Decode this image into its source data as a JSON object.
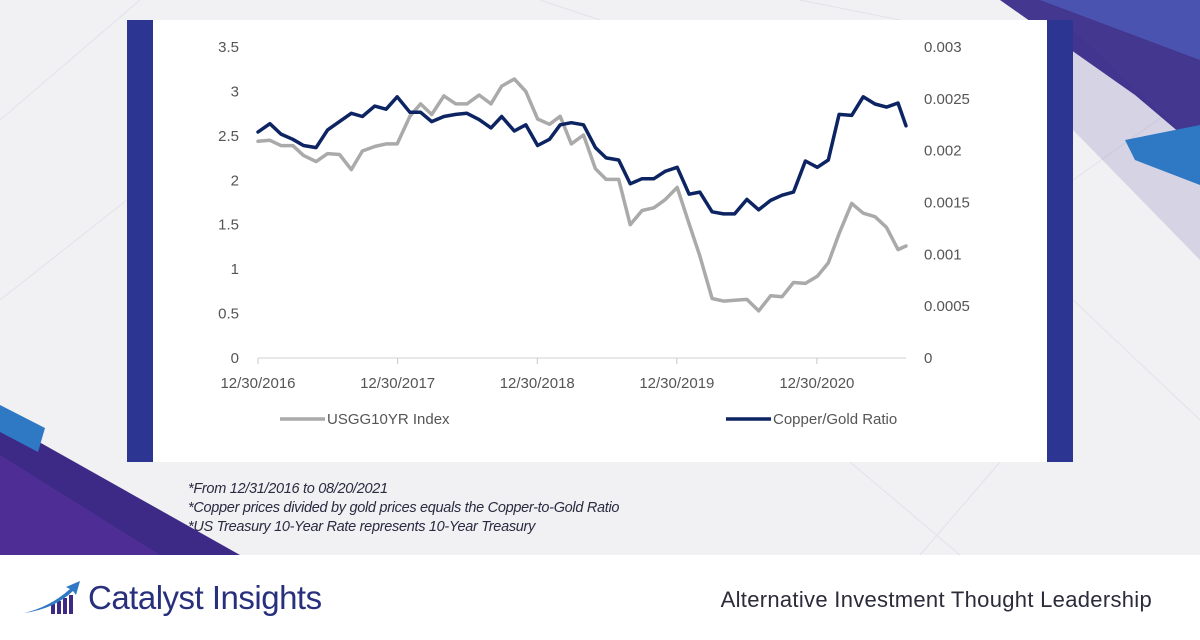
{
  "chart_data": {
    "type": "line",
    "x_tick_labels": [
      "12/30/2016",
      "12/30/2017",
      "12/30/2018",
      "12/30/2019",
      "12/30/2020"
    ],
    "y_left_ticks": [
      "3.5",
      "3",
      "2.5",
      "2",
      "1.5",
      "1",
      "0.5",
      "0"
    ],
    "y_right_ticks": [
      "0.003",
      "0.0025",
      "0.002",
      "0.0015",
      "0.001",
      "0.0005",
      "0"
    ],
    "y_left_range": [
      0,
      3.5
    ],
    "y_right_range": [
      0,
      0.003
    ],
    "x_range": [
      "2016-12-30",
      "2021-08-20"
    ],
    "legend_position": "bottom",
    "series": [
      {
        "name": "USGG10YR Index",
        "axis": "left",
        "color": "#aaaaaa",
        "points": [
          [
            "2016-12-30",
            2.44
          ],
          [
            "2017-01-30",
            2.45
          ],
          [
            "2017-02-28",
            2.39
          ],
          [
            "2017-03-31",
            2.39
          ],
          [
            "2017-04-28",
            2.28
          ],
          [
            "2017-05-31",
            2.21
          ],
          [
            "2017-06-30",
            2.3
          ],
          [
            "2017-07-31",
            2.29
          ],
          [
            "2017-08-31",
            2.12
          ],
          [
            "2017-09-29",
            2.33
          ],
          [
            "2017-10-31",
            2.38
          ],
          [
            "2017-11-30",
            2.41
          ],
          [
            "2017-12-29",
            2.41
          ],
          [
            "2018-01-31",
            2.72
          ],
          [
            "2018-02-28",
            2.86
          ],
          [
            "2018-03-29",
            2.74
          ],
          [
            "2018-04-30",
            2.95
          ],
          [
            "2018-05-31",
            2.86
          ],
          [
            "2018-06-29",
            2.86
          ],
          [
            "2018-07-31",
            2.96
          ],
          [
            "2018-08-31",
            2.86
          ],
          [
            "2018-09-28",
            3.06
          ],
          [
            "2018-10-31",
            3.14
          ],
          [
            "2018-11-30",
            3.0
          ],
          [
            "2018-12-31",
            2.69
          ],
          [
            "2019-01-31",
            2.63
          ],
          [
            "2019-02-28",
            2.72
          ],
          [
            "2019-03-29",
            2.41
          ],
          [
            "2019-04-30",
            2.51
          ],
          [
            "2019-05-31",
            2.13
          ],
          [
            "2019-06-28",
            2.01
          ],
          [
            "2019-07-31",
            2.01
          ],
          [
            "2019-08-30",
            1.5
          ],
          [
            "2019-09-30",
            1.66
          ],
          [
            "2019-10-31",
            1.69
          ],
          [
            "2019-11-29",
            1.78
          ],
          [
            "2019-12-31",
            1.92
          ],
          [
            "2020-01-31",
            1.51
          ],
          [
            "2020-02-28",
            1.15
          ],
          [
            "2020-03-31",
            0.67
          ],
          [
            "2020-04-30",
            0.64
          ],
          [
            "2020-05-29",
            0.65
          ],
          [
            "2020-06-30",
            0.66
          ],
          [
            "2020-07-31",
            0.53
          ],
          [
            "2020-08-31",
            0.7
          ],
          [
            "2020-09-30",
            0.69
          ],
          [
            "2020-10-30",
            0.85
          ],
          [
            "2020-11-30",
            0.84
          ],
          [
            "2020-12-31",
            0.92
          ],
          [
            "2021-01-29",
            1.07
          ],
          [
            "2021-02-26",
            1.4
          ],
          [
            "2021-03-31",
            1.74
          ],
          [
            "2021-04-30",
            1.63
          ],
          [
            "2021-05-31",
            1.59
          ],
          [
            "2021-06-30",
            1.47
          ],
          [
            "2021-07-30",
            1.22
          ],
          [
            "2021-08-20",
            1.26
          ]
        ]
      },
      {
        "name": "Copper/Gold Ratio",
        "axis": "right",
        "color": "#0d2463",
        "points": [
          [
            "2016-12-30",
            0.00218
          ],
          [
            "2017-01-30",
            0.00226
          ],
          [
            "2017-02-28",
            0.00216
          ],
          [
            "2017-03-31",
            0.00211
          ],
          [
            "2017-04-28",
            0.00205
          ],
          [
            "2017-05-31",
            0.00203
          ],
          [
            "2017-06-30",
            0.0022
          ],
          [
            "2017-07-31",
            0.00228
          ],
          [
            "2017-08-31",
            0.00236
          ],
          [
            "2017-09-29",
            0.00233
          ],
          [
            "2017-10-31",
            0.00243
          ],
          [
            "2017-11-30",
            0.0024
          ],
          [
            "2017-12-29",
            0.00252
          ],
          [
            "2018-01-31",
            0.00237
          ],
          [
            "2018-02-28",
            0.00237
          ],
          [
            "2018-03-29",
            0.00228
          ],
          [
            "2018-04-30",
            0.00233
          ],
          [
            "2018-05-31",
            0.00235
          ],
          [
            "2018-06-29",
            0.00236
          ],
          [
            "2018-07-31",
            0.0023
          ],
          [
            "2018-08-31",
            0.00222
          ],
          [
            "2018-09-28",
            0.00233
          ],
          [
            "2018-10-31",
            0.00219
          ],
          [
            "2018-11-30",
            0.00225
          ],
          [
            "2018-12-31",
            0.00205
          ],
          [
            "2019-01-31",
            0.00211
          ],
          [
            "2019-02-28",
            0.00225
          ],
          [
            "2019-03-29",
            0.00227
          ],
          [
            "2019-04-30",
            0.00225
          ],
          [
            "2019-05-31",
            0.00203
          ],
          [
            "2019-06-28",
            0.00193
          ],
          [
            "2019-07-31",
            0.00191
          ],
          [
            "2019-08-30",
            0.00168
          ],
          [
            "2019-09-30",
            0.00173
          ],
          [
            "2019-10-31",
            0.00173
          ],
          [
            "2019-11-29",
            0.0018
          ],
          [
            "2019-12-31",
            0.00184
          ],
          [
            "2020-01-31",
            0.00158
          ],
          [
            "2020-02-28",
            0.0016
          ],
          [
            "2020-03-31",
            0.00141
          ],
          [
            "2020-04-30",
            0.00139
          ],
          [
            "2020-05-29",
            0.00139
          ],
          [
            "2020-06-30",
            0.00153
          ],
          [
            "2020-07-31",
            0.00143
          ],
          [
            "2020-08-31",
            0.00152
          ],
          [
            "2020-09-30",
            0.00157
          ],
          [
            "2020-10-30",
            0.0016
          ],
          [
            "2020-11-30",
            0.0019
          ],
          [
            "2020-12-31",
            0.00184
          ],
          [
            "2021-01-29",
            0.00191
          ],
          [
            "2021-02-26",
            0.00235
          ],
          [
            "2021-03-31",
            0.00234
          ],
          [
            "2021-04-30",
            0.00252
          ],
          [
            "2021-05-31",
            0.00245
          ],
          [
            "2021-06-30",
            0.00242
          ],
          [
            "2021-07-30",
            0.00246
          ],
          [
            "2021-08-20",
            0.00224
          ]
        ]
      }
    ]
  },
  "footnotes": {
    "line1": "*From 12/31/2016 to 08/20/2021",
    "line2": "*Copper prices divided by gold prices equals the Copper-to-Gold Ratio",
    "line3": "*US Treasury 10-Year Rate represents 10-Year Treasury"
  },
  "footer": {
    "brand": "Catalyst Insights",
    "tagline": "Alternative Investment Thought Leadership"
  },
  "colors": {
    "panel_bar": "#2c3591",
    "brand": "#28307e",
    "accent_blue": "#3480c8",
    "accent_purple": "#4a2f8e"
  }
}
